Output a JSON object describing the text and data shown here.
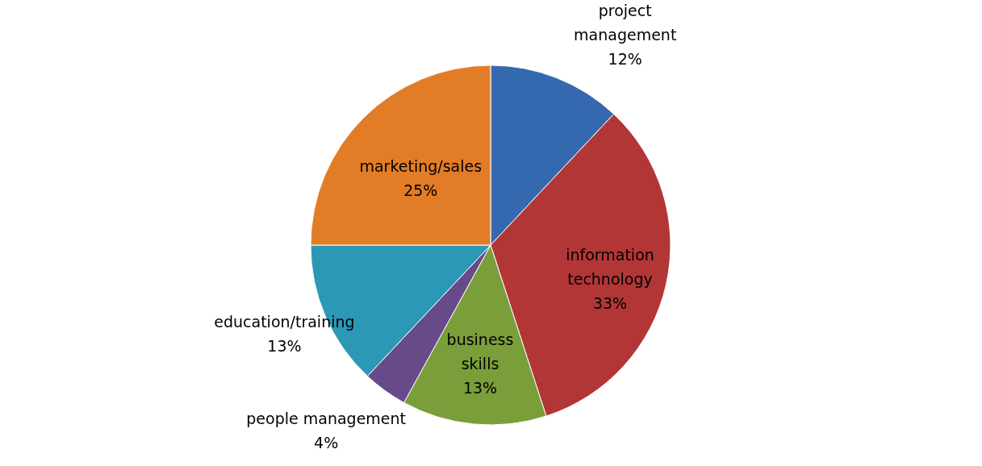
{
  "chart_data": {
    "type": "pie",
    "categories": [
      "project management",
      "information technology",
      "business skills",
      "people management",
      "education/training",
      "marketing/sales"
    ],
    "values": [
      12,
      33,
      13,
      4,
      13,
      25
    ],
    "value_labels": [
      "12%",
      "33%",
      "13%",
      "4%",
      "13%",
      "25%"
    ],
    "colors": [
      "#3469b0",
      "#b33636",
      "#7a9e3a",
      "#674a8a",
      "#2b98b6",
      "#e27c26"
    ],
    "legend": false
  }
}
